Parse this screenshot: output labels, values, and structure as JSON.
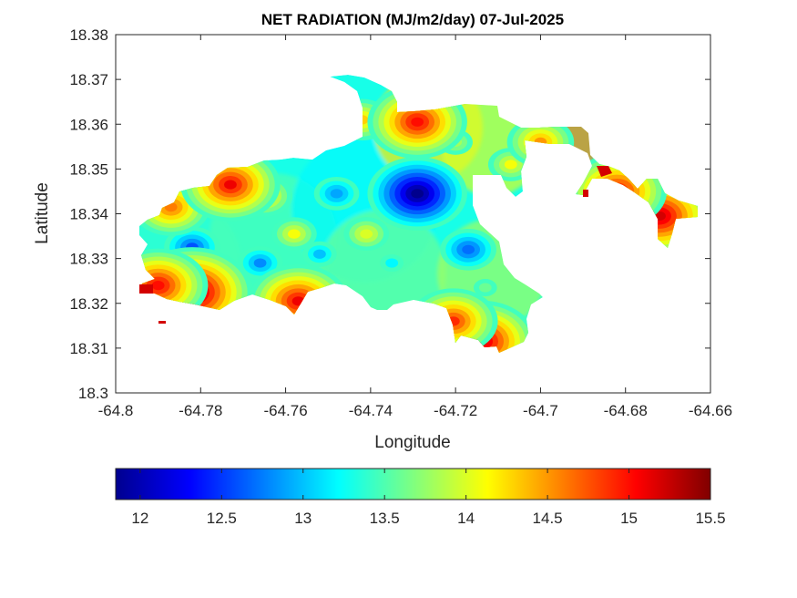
{
  "chart_data": {
    "type": "heatmap",
    "title": "NET RADIATION (MJ/m2/day) 07-Jul-2025",
    "xlabel": "Longitude",
    "ylabel": "Latitude",
    "xlim": [
      -64.8,
      -64.66
    ],
    "ylim": [
      18.3,
      18.38
    ],
    "xticks": [
      -64.8,
      -64.78,
      -64.76,
      -64.74,
      -64.72,
      -64.7,
      -64.68,
      -64.66
    ],
    "xtick_labels": [
      "-64.8",
      "-64.78",
      "-64.76",
      "-64.74",
      "-64.72",
      "-64.7",
      "-64.68",
      "-64.66"
    ],
    "yticks": [
      18.3,
      18.31,
      18.32,
      18.33,
      18.34,
      18.35,
      18.36,
      18.37,
      18.38
    ],
    "ytick_labels": [
      "18.3",
      "18.31",
      "18.32",
      "18.33",
      "18.34",
      "18.35",
      "18.36",
      "18.37",
      "18.38"
    ],
    "grid": false,
    "colormap": "jet",
    "colorbar": {
      "location": "southoutside",
      "range": [
        11.85,
        15.5
      ],
      "ticks": [
        12,
        12.5,
        13,
        13.5,
        14,
        14.5,
        15,
        15.5
      ],
      "tick_labels": [
        "12",
        "12.5",
        "13",
        "13.5",
        "14",
        "14.5",
        "15",
        "15.5"
      ]
    },
    "hotspots": [
      {
        "lon": -64.729,
        "lat": 18.3445,
        "value": 11.9
      },
      {
        "lon": -64.782,
        "lat": 18.3325,
        "value": 12.6
      },
      {
        "lon": -64.717,
        "lat": 18.332,
        "value": 12.7
      },
      {
        "lon": -64.766,
        "lat": 18.329,
        "value": 12.8
      },
      {
        "lon": -64.748,
        "lat": 18.3445,
        "value": 12.9
      },
      {
        "lon": -64.752,
        "lat": 18.331,
        "value": 13.0
      },
      {
        "lon": -64.735,
        "lat": 18.329,
        "value": 13.2
      },
      {
        "lon": -64.713,
        "lat": 18.3235,
        "value": 13.6
      },
      {
        "lon": -64.72,
        "lat": 18.356,
        "value": 13.8
      },
      {
        "lon": -64.707,
        "lat": 18.351,
        "value": 14.1
      },
      {
        "lon": -64.741,
        "lat": 18.3355,
        "value": 14.0
      },
      {
        "lon": -64.758,
        "lat": 18.3355,
        "value": 14.1
      },
      {
        "lon": -64.765,
        "lat": 18.344,
        "value": 14.2
      },
      {
        "lon": -64.742,
        "lat": 18.361,
        "value": 14.3
      },
      {
        "lon": -64.7,
        "lat": 18.356,
        "value": 14.5
      },
      {
        "lon": -64.787,
        "lat": 18.3415,
        "value": 14.6
      },
      {
        "lon": -64.773,
        "lat": 18.3465,
        "value": 15.1
      },
      {
        "lon": -64.729,
        "lat": 18.3605,
        "value": 15.0
      },
      {
        "lon": -64.782,
        "lat": 18.3225,
        "value": 15.4
      },
      {
        "lon": -64.757,
        "lat": 18.3205,
        "value": 15.1
      },
      {
        "lon": -64.714,
        "lat": 18.3115,
        "value": 15.3
      },
      {
        "lon": -64.672,
        "lat": 18.3395,
        "value": 15.2
      },
      {
        "lon": -64.682,
        "lat": 18.345,
        "value": 15.1
      },
      {
        "lon": -64.79,
        "lat": 18.324,
        "value": 15.0
      },
      {
        "lon": -64.7205,
        "lat": 18.316,
        "value": 14.9
      }
    ]
  }
}
